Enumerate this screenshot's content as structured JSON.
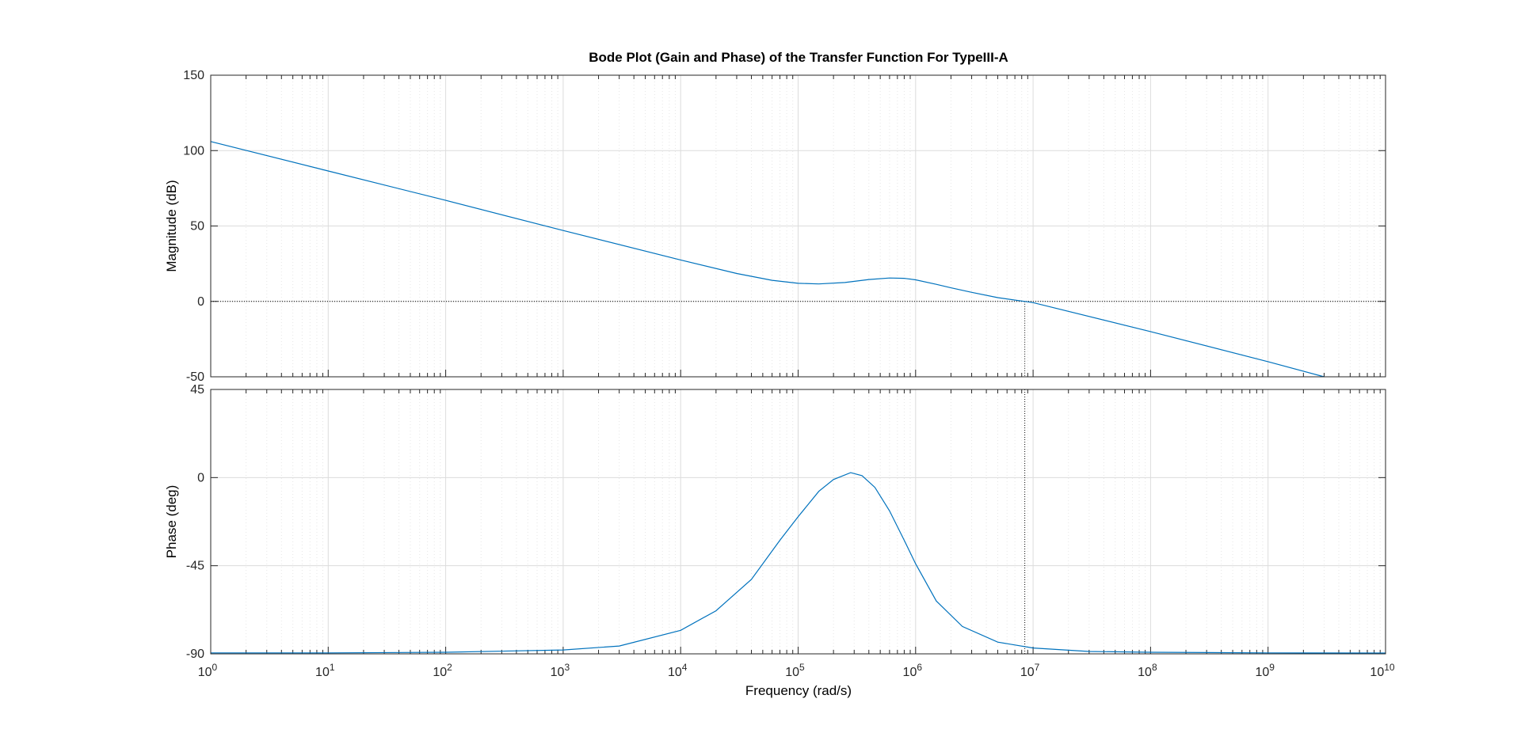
{
  "chart_data": {
    "type": "line",
    "title": "Bode Plot (Gain and Phase) of the Transfer Function For TypeIII-A",
    "xlabel": "Frequency  (rad/s)",
    "xscale": "log",
    "xlim": [
      1,
      10000000000
    ],
    "x_tick_exponents": [
      0,
      1,
      2,
      3,
      4,
      5,
      6,
      7,
      8,
      9,
      10
    ],
    "x_tick_base": "10",
    "grid": true,
    "minor_grid": true,
    "color": "#0072BD",
    "subplots": [
      {
        "name": "magnitude",
        "ylabel": "Magnitude (dB)",
        "ylim": [
          -50,
          150
        ],
        "yticks": [
          "150",
          "100",
          "50",
          "0",
          "-50"
        ],
        "reference_line": {
          "y": 0,
          "style": "dotted"
        },
        "crossover_marker": {
          "x": 8500000,
          "style": "dotted"
        },
        "series": [
          {
            "x": [
              1,
              10,
              100,
              1000,
              10000,
              30000,
              60000,
              100000,
              150000,
              250000,
              400000,
              600000,
              800000,
              1000000,
              1500000,
              2000000,
              3000000,
              5000000,
              8500000,
              10000000,
              100000000,
              1000000000,
              3000000000
            ],
            "y": [
              106,
              86.5,
              67,
              47,
              27.5,
              18.5,
              14,
              12,
              11.6,
              12.5,
              14.5,
              15.5,
              15.3,
              14.3,
              11.3,
              9,
              6,
              2.5,
              0,
              -0.8,
              -20,
              -40,
              -50
            ]
          }
        ]
      },
      {
        "name": "phase",
        "ylabel": "Phase (deg)",
        "ylim": [
          -90,
          45
        ],
        "yticks": [
          "45",
          "0",
          "-45",
          "-90"
        ],
        "crossover_marker": {
          "x": 8500000,
          "style": "dotted"
        },
        "series": [
          {
            "x": [
              1,
              10,
              100,
              1000,
              3000,
              10000,
              20000,
              40000,
              70000,
              100000,
              150000,
              200000,
              280000,
              350000,
              450000,
              600000,
              800000,
              1000000,
              1500000,
              2500000,
              5000000,
              10000000,
              30000000,
              100000000,
              1000000000,
              10000000000
            ],
            "y": [
              -89.5,
              -89.5,
              -89.2,
              -88,
              -86,
              -78,
              -68,
              -52,
              -32,
              -20,
              -7,
              -1,
              2.5,
              1,
              -5,
              -17,
              -32,
              -44,
              -63,
              -76,
              -84,
              -87,
              -88.8,
              -89.2,
              -89.5,
              -89.6
            ]
          }
        ]
      }
    ]
  }
}
